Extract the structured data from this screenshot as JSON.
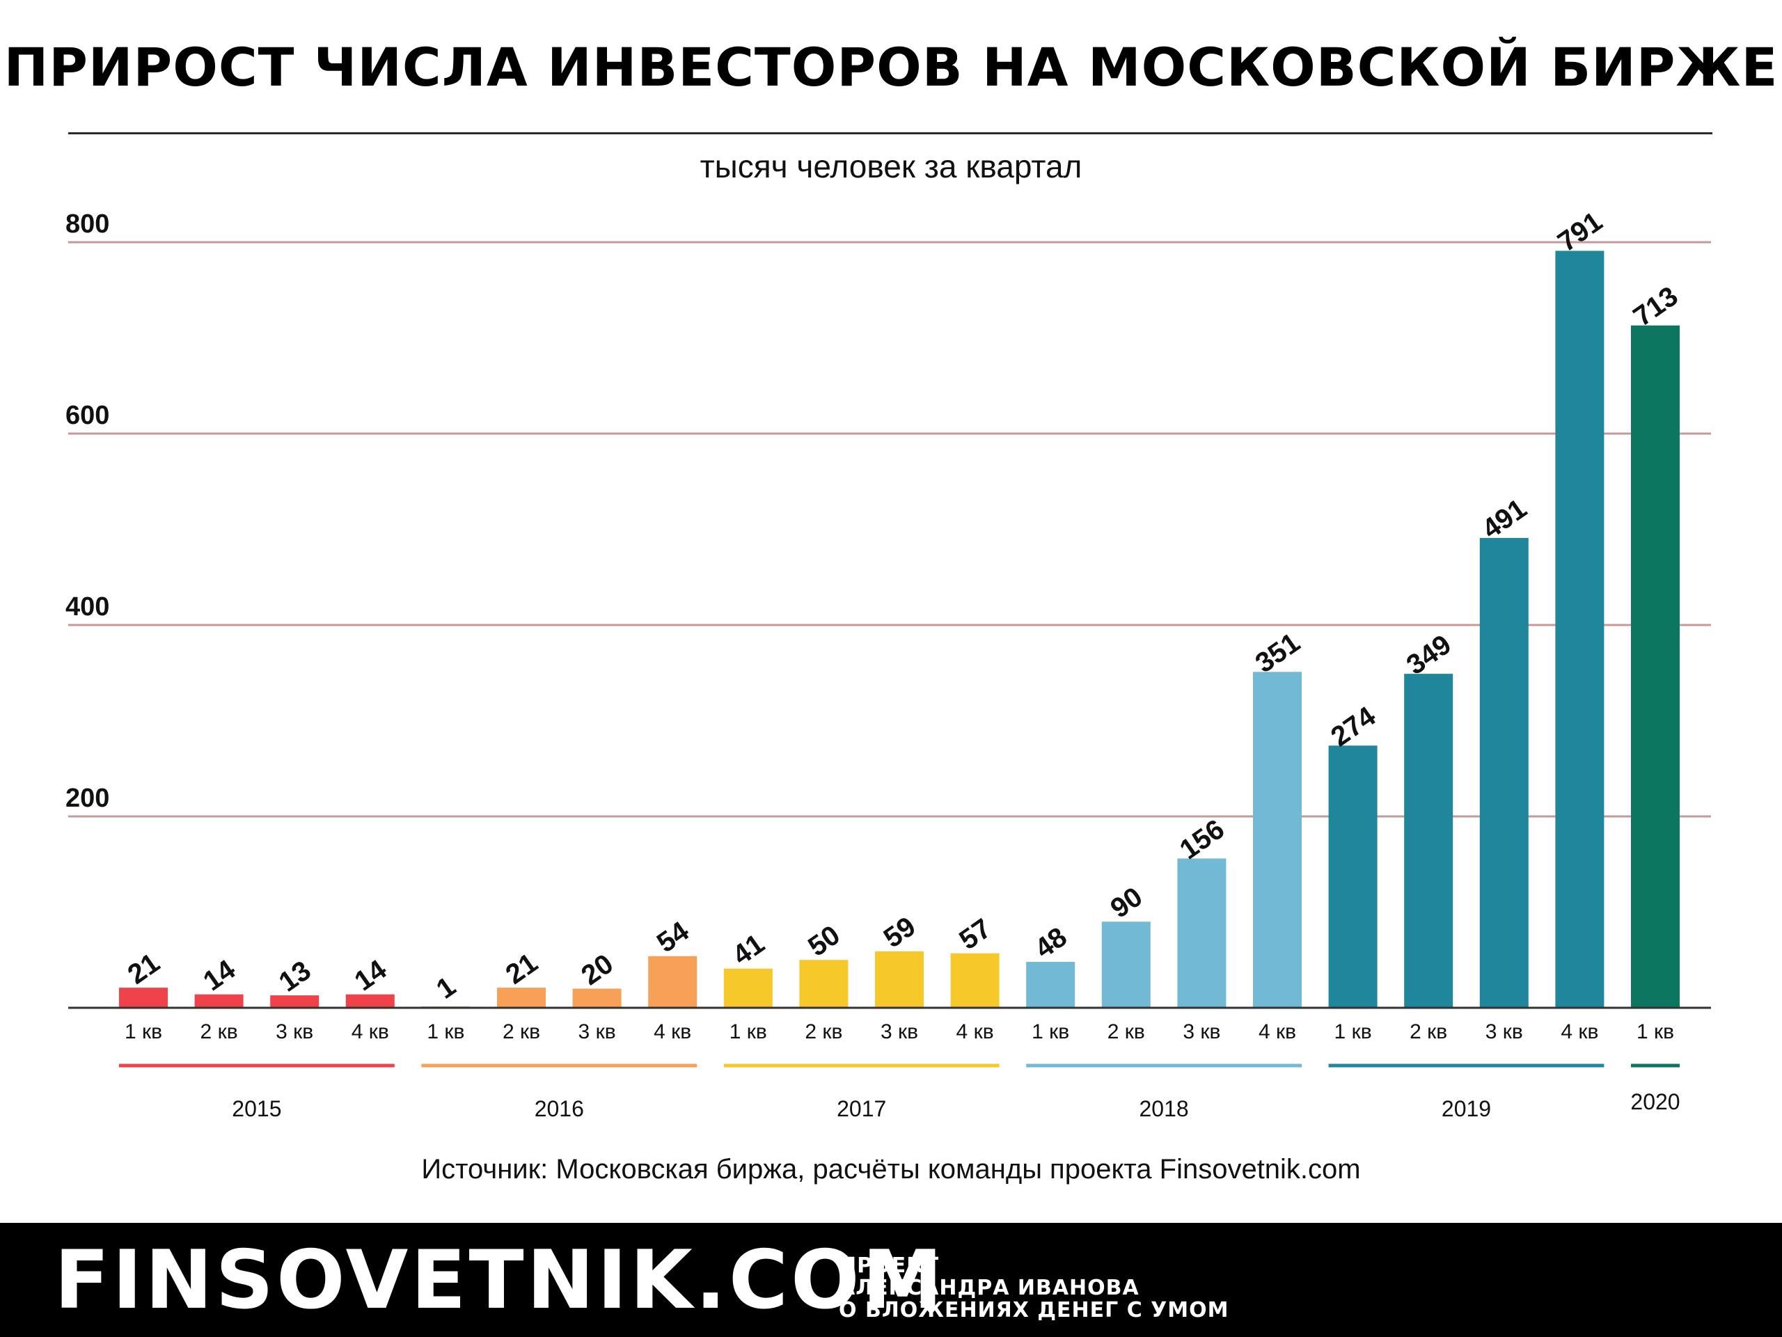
{
  "title": "ПРИРОСТ ЧИСЛА ИНВЕСТОРОВ НА МОСКОВСКОЙ БИРЖЕ",
  "subtitle": "тысяч человек за квартал",
  "source": "Источник: Московская биржа, расчёты команды проекта Finsovetnik.com",
  "footer": {
    "logo": "FINSOVETNIK.COM",
    "tagline": [
      "ПРОЕКТ",
      "АЛЕКСАНДРА ИВАНОВА",
      "О ВЛОЖЕНИЯХ ДЕНЕГ С УМОМ"
    ]
  },
  "chart_data": {
    "type": "bar",
    "title": "ПРИРОСТ ЧИСЛА ИНВЕСТОРОВ НА МОСКОВСКОЙ БИРЖЕ",
    "subtitle": "тысяч человек за квартал",
    "xlabel": "",
    "ylabel": "",
    "ylim": [
      0,
      800
    ],
    "yticks": [
      200,
      400,
      600,
      800
    ],
    "grid": true,
    "grid_color": "#c89898",
    "years": [
      {
        "label": "2015",
        "color": "#f0424a",
        "quarters": [
          {
            "label": "1 кв",
            "value": 21
          },
          {
            "label": "2 кв",
            "value": 14
          },
          {
            "label": "3 кв",
            "value": 13
          },
          {
            "label": "4 кв",
            "value": 14
          }
        ]
      },
      {
        "label": "2016",
        "color": "#f7a058",
        "quarters": [
          {
            "label": "1 кв",
            "value": 1
          },
          {
            "label": "2 кв",
            "value": 21
          },
          {
            "label": "3 кв",
            "value": 20
          },
          {
            "label": "4 кв",
            "value": 54
          }
        ]
      },
      {
        "label": "2017",
        "color": "#f6c82a",
        "quarters": [
          {
            "label": "1 кв",
            "value": 41
          },
          {
            "label": "2 кв",
            "value": 50
          },
          {
            "label": "3 кв",
            "value": 59
          },
          {
            "label": "4 кв",
            "value": 57
          }
        ]
      },
      {
        "label": "2018",
        "color": "#72b9d6",
        "quarters": [
          {
            "label": "1 кв",
            "value": 48
          },
          {
            "label": "2 кв",
            "value": 90
          },
          {
            "label": "3 кв",
            "value": 156
          },
          {
            "label": "4 кв",
            "value": 351
          }
        ]
      },
      {
        "label": "2019",
        "color": "#1f869c",
        "quarters": [
          {
            "label": "1 кв",
            "value": 274
          },
          {
            "label": "2 кв",
            "value": 349
          },
          {
            "label": "3 кв",
            "value": 491
          },
          {
            "label": "4 кв",
            "value": 791
          }
        ]
      },
      {
        "label": "2020",
        "color": "#0c7660",
        "quarters": [
          {
            "label": "1 кв",
            "value": 713
          }
        ]
      }
    ]
  }
}
